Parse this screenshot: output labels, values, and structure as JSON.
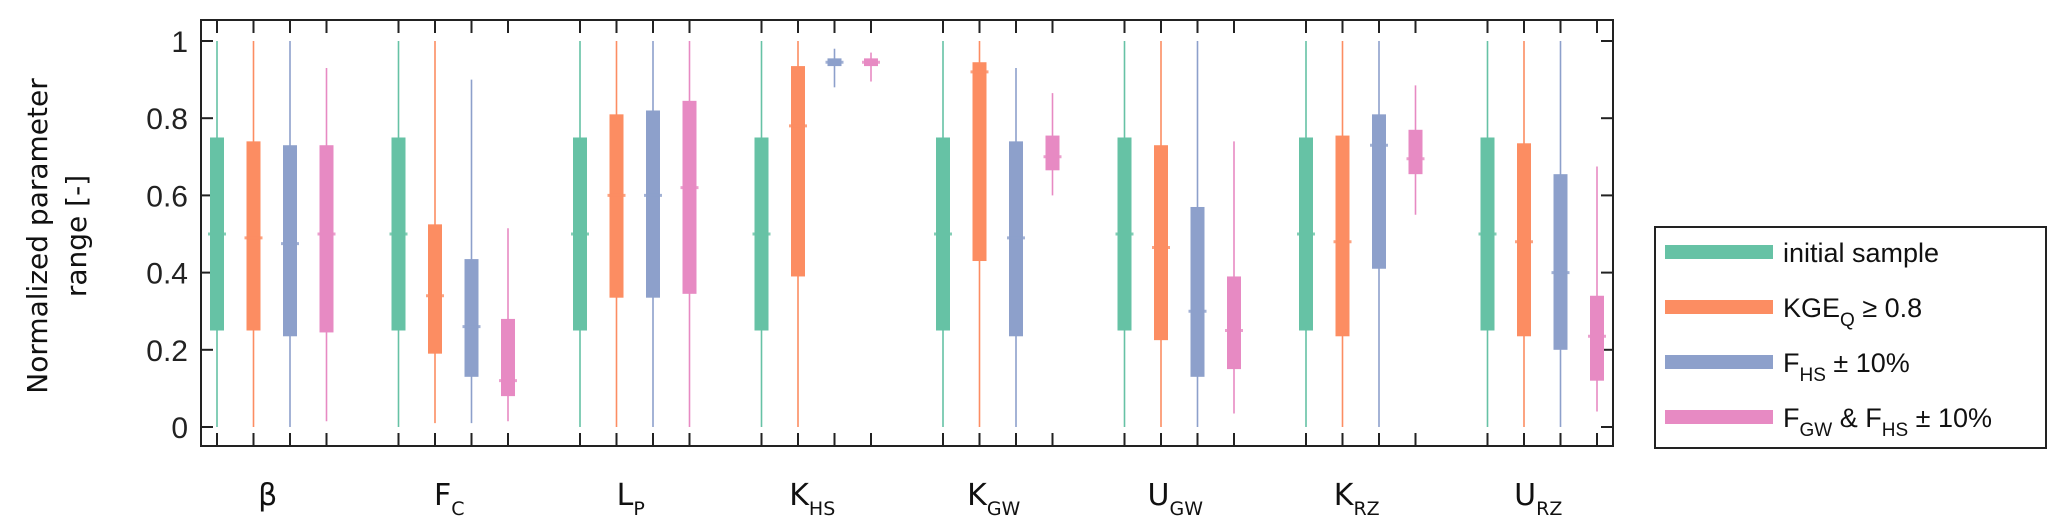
{
  "chart_data": {
    "type": "boxplot",
    "ylabel_line1": "Normalized parameter",
    "ylabel_line2": "range [-]",
    "ylim": [
      0,
      1
    ],
    "yticks": [
      "0",
      "0.2",
      "0.4",
      "0.6",
      "0.8",
      "1"
    ],
    "grid": false,
    "legend_placement": "right",
    "categories": [
      {
        "main": "β",
        "sub": ""
      },
      {
        "main": "F",
        "sub": "C"
      },
      {
        "main": "L",
        "sub": "P"
      },
      {
        "main": "K",
        "sub": "HS"
      },
      {
        "main": "K",
        "sub": "GW"
      },
      {
        "main": "U",
        "sub": "GW"
      },
      {
        "main": "K",
        "sub": "RZ"
      },
      {
        "main": "U",
        "sub": "RZ"
      }
    ],
    "series": [
      {
        "name": "initial sample",
        "legend_parts": [
          {
            "t": "initial sample"
          }
        ],
        "color": "#66c2a5",
        "boxes": [
          [
            0,
            0.25,
            0.5,
            0.75,
            1
          ],
          [
            0,
            0.25,
            0.5,
            0.75,
            1
          ],
          [
            0,
            0.25,
            0.5,
            0.75,
            1
          ],
          [
            0,
            0.25,
            0.5,
            0.75,
            1
          ],
          [
            0,
            0.25,
            0.5,
            0.75,
            1
          ],
          [
            0,
            0.25,
            0.5,
            0.75,
            1
          ],
          [
            0,
            0.25,
            0.5,
            0.75,
            1
          ],
          [
            0,
            0.25,
            0.5,
            0.75,
            1
          ]
        ]
      },
      {
        "name": "KGE_Q ≥ 0.8",
        "legend_parts": [
          {
            "t": "KGE"
          },
          {
            "s": "Q"
          },
          {
            "t": " ≥ 0.8"
          }
        ],
        "color": "#fc8d62",
        "boxes": [
          [
            0,
            0.25,
            0.49,
            0.74,
            1
          ],
          [
            0.01,
            0.19,
            0.34,
            0.525,
            1
          ],
          [
            0,
            0.335,
            0.6,
            0.81,
            1
          ],
          [
            0,
            0.39,
            0.78,
            0.935,
            1
          ],
          [
            0,
            0.43,
            0.92,
            0.945,
            1
          ],
          [
            0,
            0.225,
            0.465,
            0.73,
            1
          ],
          [
            0,
            0.235,
            0.48,
            0.755,
            1
          ],
          [
            0,
            0.235,
            0.48,
            0.735,
            1
          ]
        ]
      },
      {
        "name": "F_HS ± 10%",
        "legend_parts": [
          {
            "t": "F"
          },
          {
            "s": "HS"
          },
          {
            "t": " ± 10%"
          }
        ],
        "color": "#8da0cb",
        "boxes": [
          [
            0,
            0.235,
            0.475,
            0.73,
            1
          ],
          [
            0.01,
            0.13,
            0.26,
            0.435,
            0.9
          ],
          [
            0,
            0.335,
            0.6,
            0.82,
            1
          ],
          [
            0.88,
            0.935,
            0.945,
            0.955,
            0.98
          ],
          [
            0,
            0.235,
            0.49,
            0.74,
            0.93
          ],
          [
            0,
            0.13,
            0.3,
            0.57,
            1
          ],
          [
            0,
            0.41,
            0.73,
            0.81,
            1
          ],
          [
            0,
            0.2,
            0.4,
            0.655,
            1
          ]
        ]
      },
      {
        "name": "F_GW & F_HS ± 10%",
        "legend_parts": [
          {
            "t": "F"
          },
          {
            "s": "GW"
          },
          {
            "t": " & F"
          },
          {
            "s": "HS"
          },
          {
            "t": " ± 10%"
          }
        ],
        "color": "#e78ac3",
        "boxes": [
          [
            0.015,
            0.245,
            0.5,
            0.73,
            0.93
          ],
          [
            0.015,
            0.08,
            0.12,
            0.28,
            0.515
          ],
          [
            0,
            0.345,
            0.62,
            0.845,
            1
          ],
          [
            0.895,
            0.935,
            0.945,
            0.955,
            0.97
          ],
          [
            0.6,
            0.665,
            0.7,
            0.755,
            0.865
          ],
          [
            0.035,
            0.15,
            0.25,
            0.39,
            0.74
          ],
          [
            0.55,
            0.655,
            0.695,
            0.77,
            0.885
          ],
          [
            0.04,
            0.12,
            0.235,
            0.34,
            0.675
          ]
        ]
      }
    ],
    "box_value_order": [
      "whisker_low",
      "q1",
      "median",
      "q3",
      "whisker_high"
    ]
  }
}
